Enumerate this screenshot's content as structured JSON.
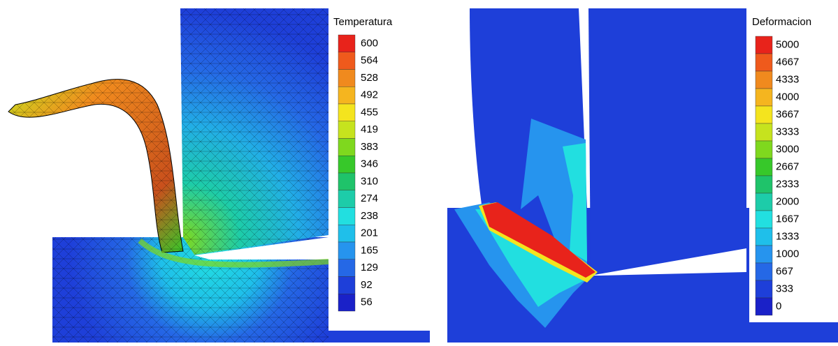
{
  "panels": [
    {
      "legend": {
        "title": "Temperatura",
        "labels": [
          600,
          564,
          528,
          492,
          455,
          419,
          383,
          346,
          310,
          274,
          238,
          201,
          165,
          129,
          92,
          56
        ]
      }
    },
    {
      "legend": {
        "title": "Deformacion",
        "labels": [
          5000,
          4667,
          4333,
          4000,
          3667,
          3333,
          3000,
          2667,
          2333,
          2000,
          1667,
          1333,
          1000,
          667,
          333,
          0
        ]
      }
    }
  ]
}
